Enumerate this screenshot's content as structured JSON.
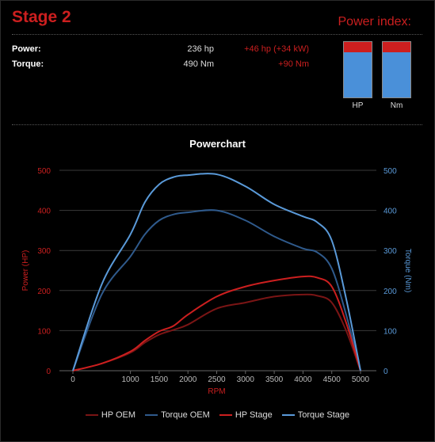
{
  "stage": {
    "title": "Stage 2"
  },
  "power_index": {
    "title": "Power index:",
    "bars": [
      {
        "label": "HP",
        "gain_fraction": 0.19,
        "color_gain": "#cc1f1f",
        "color_base": "#4a90d9"
      },
      {
        "label": "Nm",
        "gain_fraction": 0.18,
        "color_gain": "#cc1f1f",
        "color_base": "#4a90d9"
      }
    ]
  },
  "specs": [
    {
      "label": "Power:",
      "value": "236 hp",
      "gain": "+46 hp (+34 kW)"
    },
    {
      "label": "Torque:",
      "value": "490 Nm",
      "gain": "+90 Nm"
    }
  ],
  "chart_data": {
    "type": "line",
    "title": "Powerchart",
    "xlabel": "RPM",
    "ylabel_left": "Power (HP)",
    "ylabel_right": "Torque (Nm)",
    "xlim": [
      0,
      5000
    ],
    "ylim_left": [
      0,
      500
    ],
    "ylim_right": [
      0,
      500
    ],
    "x_ticks": [
      0,
      1000,
      1500,
      2000,
      2500,
      3000,
      3500,
      4000,
      4500,
      5000
    ],
    "y_ticks_left": [
      0,
      100,
      200,
      300,
      400,
      500
    ],
    "y_ticks_right": [
      0,
      100,
      200,
      300,
      400,
      500
    ],
    "grid": true,
    "legend_position": "bottom",
    "x": [
      0,
      500,
      1000,
      1250,
      1500,
      1750,
      2000,
      2500,
      3000,
      3500,
      4000,
      4250,
      4500,
      4750,
      5000
    ],
    "series": [
      {
        "name": "HP OEM",
        "axis": "left",
        "color": "#7a1515",
        "values": [
          0,
          18,
          45,
          70,
          90,
          102,
          115,
          155,
          170,
          185,
          190,
          187,
          170,
          100,
          0
        ]
      },
      {
        "name": "Torque OEM",
        "axis": "right",
        "color": "#2f5a8c",
        "values": [
          0,
          190,
          285,
          340,
          375,
          390,
          395,
          400,
          375,
          335,
          305,
          295,
          255,
          140,
          0
        ]
      },
      {
        "name": "HP Stage",
        "axis": "left",
        "color": "#cc1f1f",
        "values": [
          0,
          18,
          48,
          75,
          98,
          112,
          140,
          185,
          210,
          225,
          235,
          232,
          210,
          120,
          0
        ]
      },
      {
        "name": "Torque Stage",
        "axis": "right",
        "color": "#5a9ad9",
        "values": [
          0,
          215,
          340,
          420,
          465,
          483,
          488,
          490,
          460,
          415,
          385,
          370,
          325,
          180,
          0
        ]
      }
    ]
  }
}
